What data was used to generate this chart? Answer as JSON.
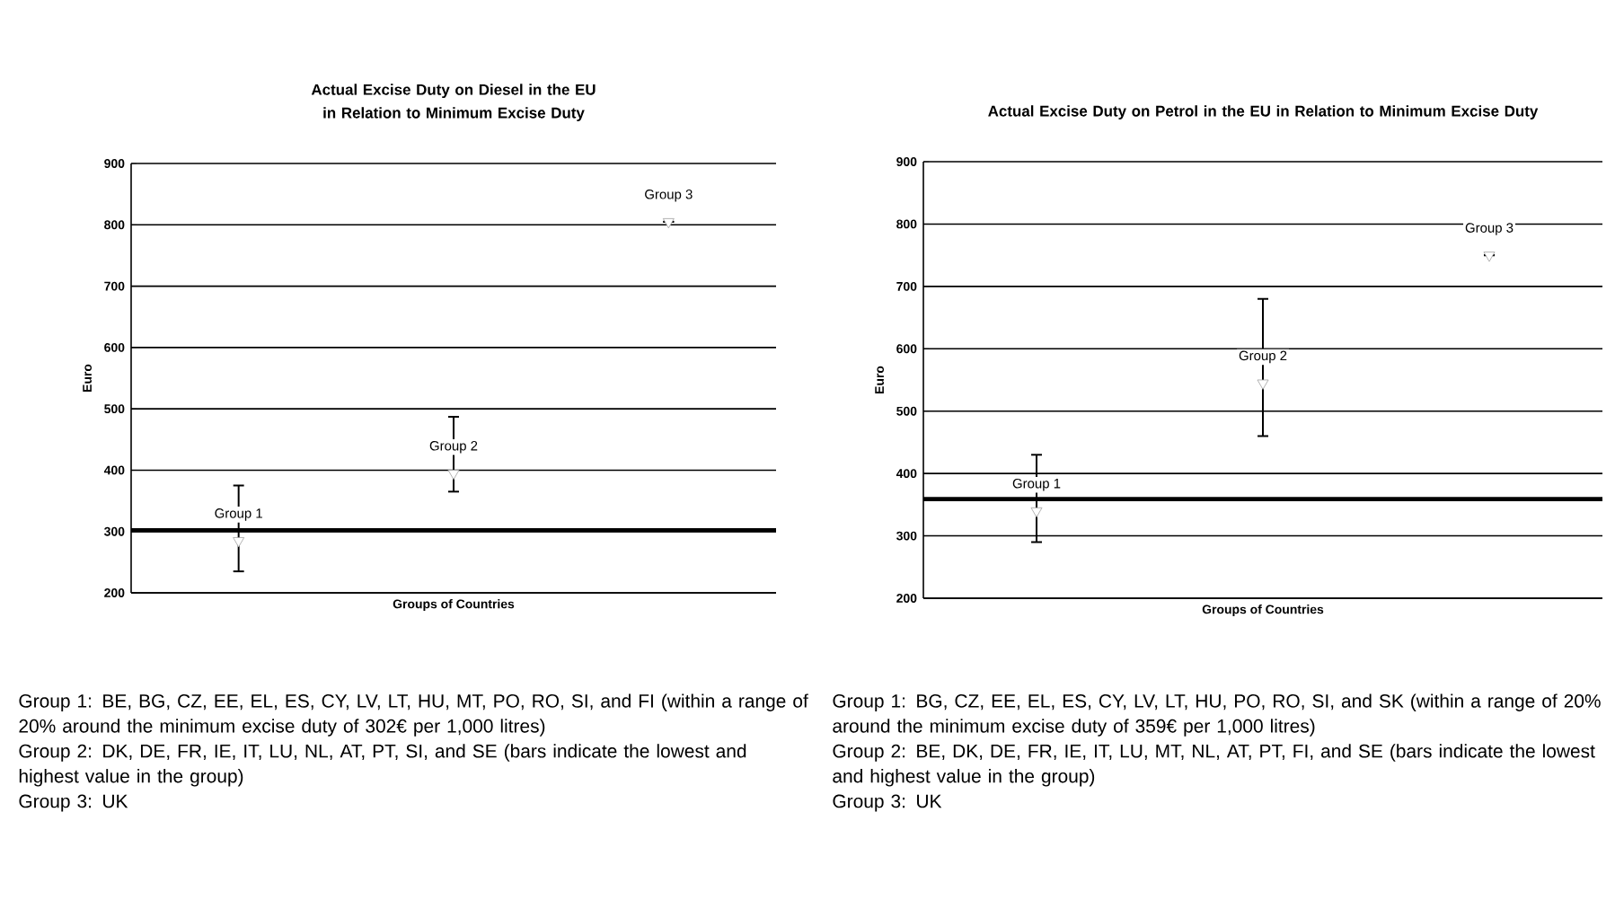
{
  "chart_data": [
    {
      "type": "scatter",
      "title": "Actual Excise Duty on Diesel in the EU in Relation to Minimum Excise Duty",
      "xlabel": "Groups of Countries",
      "ylabel": "Euro",
      "categories": [
        null,
        null,
        null
      ],
      "series": [
        {
          "color": "#a0a0a0",
          "values": [
            285,
            395,
            805
          ],
          "errors": [
            [
              235,
              375
            ],
            [
              365,
              487
            ],
            null
          ]
        }
      ],
      "ylim": [
        200,
        900
      ],
      "yticks": [
        200,
        300,
        400,
        500,
        600,
        700,
        800,
        900
      ],
      "grid": "y",
      "marker": "triangle",
      "ref_lines": [
        {
          "axis": "y",
          "value": 302,
          "color": "#000000"
        }
      ],
      "annotations": [
        {
          "text": "Group 1",
          "y": 285
        },
        {
          "text": "Group 2",
          "y": 395
        },
        {
          "text": "Group 3",
          "y": 805
        },
        "Group 1: BE, BG, CZ, EE, EL, ES, CY, LV, LT, HU, MT, PO, RO, SI, and FI (within a range of 20% around the minimum excise duty of 302€ per 1,000 litres)",
        "Group 2: DK, DE, FR, IE, IT, LU, NL, AT, PT, SI, and SE (bars indicate the lowest and highest value in the group)",
        "Group 3: UK"
      ]
    },
    {
      "type": "scatter",
      "title": "Actual Excise Duty on Petrol in the EU in Relation to Minimum Excise Duty",
      "xlabel": "Groups of Countries",
      "ylabel": "Euro",
      "categories": [
        null,
        null,
        null
      ],
      "series": [
        {
          "color": "#a0a0a0",
          "values": [
            340,
            545,
            750
          ],
          "errors": [
            [
              290,
              430
            ],
            [
              460,
              680
            ],
            null
          ]
        }
      ],
      "ylim": [
        200,
        900
      ],
      "yticks": [
        200,
        300,
        400,
        500,
        600,
        700,
        800,
        900
      ],
      "grid": "y",
      "marker": "triangle",
      "ref_lines": [
        {
          "axis": "y",
          "value": 359,
          "color": "#000000"
        }
      ],
      "annotations": [
        {
          "text": "Group 1",
          "y": 340
        },
        {
          "text": "Group 2",
          "y": 545
        },
        {
          "text": "Group 3",
          "y": 750
        },
        "Group 1: BG, CZ, EE, EL, ES, CY, LV, LT, HU, PO, RO, SI, and SK (within a range of 20% around the minimum excise duty of 359€ per 1,000 litres)",
        "Group 2: BE, DK, DE, FR, IE, IT, LU, MT, NL, AT, PT, FI, and SE (bars indicate the lowest and highest value in the group)",
        "Group 3: UK"
      ]
    }
  ]
}
